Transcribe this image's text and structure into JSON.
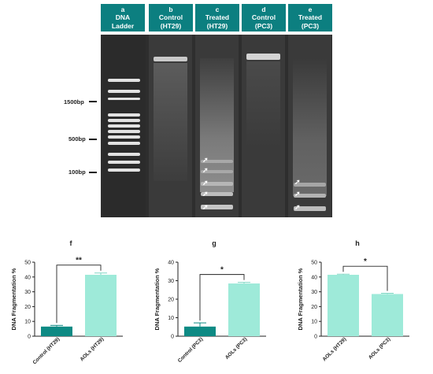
{
  "lanes": [
    {
      "letter": "a",
      "line1": "DNA",
      "line2": "Ladder"
    },
    {
      "letter": "b",
      "line1": "Control",
      "line2": "(HT29)"
    },
    {
      "letter": "c",
      "line1": "Treated",
      "line2": "(HT29)"
    },
    {
      "letter": "d",
      "line1": "Control",
      "line2": "(PC3)"
    },
    {
      "letter": "e",
      "line1": "Treated",
      "line2": "(PC3)"
    }
  ],
  "markers": [
    {
      "label": "1500bp"
    },
    {
      "label": "500bp"
    },
    {
      "label": "100bp"
    }
  ],
  "colors": {
    "header": "#0c7f80",
    "control_bar": "#0e8a84",
    "treated_bar": "#9eead9"
  },
  "chart_data": [
    {
      "panel": "f",
      "type": "bar",
      "categories": [
        "Control (HT29)",
        "AOLs (HT29)"
      ],
      "values": [
        6.5,
        41.5
      ],
      "errors": [
        0.8,
        1.2
      ],
      "ylabel": "DNA Fragmentation %",
      "ylim": [
        0,
        50
      ],
      "yticks": [
        "0",
        "10",
        "20",
        "30",
        "40",
        "50"
      ],
      "significance": "**"
    },
    {
      "panel": "g",
      "type": "bar",
      "categories": [
        "Control (PC3)",
        "AOLs (PC3)"
      ],
      "values": [
        5.2,
        28.5
      ],
      "errors": [
        2.0,
        0.6
      ],
      "ylabel": "DNA Fragmentation %",
      "ylim": [
        0,
        40
      ],
      "yticks": [
        "0",
        "10",
        "20",
        "30",
        "40"
      ],
      "significance": "*"
    },
    {
      "panel": "h",
      "type": "bar",
      "categories": [
        "AOLs (HT29)",
        "AOLs (PC3)"
      ],
      "values": [
        41.5,
        28.5
      ],
      "errors": [
        0.4,
        0.5
      ],
      "ylabel": "DNA Fragmentation %",
      "ylim": [
        0,
        50
      ],
      "yticks": [
        "0",
        "10",
        "20",
        "30",
        "40",
        "50"
      ],
      "significance": "*"
    }
  ]
}
